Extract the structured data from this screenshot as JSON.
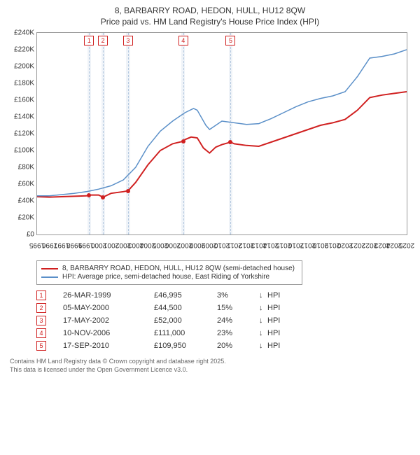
{
  "header": {
    "title": "8, BARBARRY ROAD, HEDON, HULL, HU12 8QW",
    "subtitle": "Price paid vs. HM Land Registry's House Price Index (HPI)"
  },
  "chart": {
    "type": "line",
    "x_years": [
      1995,
      1996,
      1997,
      1998,
      1999,
      2000,
      2001,
      2002,
      2003,
      2004,
      2005,
      2006,
      2007,
      2008,
      2009,
      2010,
      2011,
      2012,
      2013,
      2014,
      2015,
      2016,
      2017,
      2018,
      2019,
      2020,
      2021,
      2022,
      2023,
      2024,
      2025
    ],
    "ylim": [
      0,
      240000
    ],
    "ytick_step": 20000,
    "ytick_labels": [
      "£0",
      "£20K",
      "£40K",
      "£60K",
      "£80K",
      "£100K",
      "£120K",
      "£140K",
      "£160K",
      "£180K",
      "£200K",
      "£220K",
      "£240K"
    ],
    "series": [
      {
        "name": "property",
        "color": "#d02020",
        "width": 2,
        "points": [
          [
            1995,
            45000
          ],
          [
            1996,
            44500
          ],
          [
            1997,
            45000
          ],
          [
            1998,
            45500
          ],
          [
            1999,
            46000
          ],
          [
            1999.23,
            46995
          ],
          [
            2000,
            47000
          ],
          [
            2000.35,
            44500
          ],
          [
            2001,
            49000
          ],
          [
            2002,
            51000
          ],
          [
            2002.38,
            52000
          ],
          [
            2003,
            62000
          ],
          [
            2004,
            83000
          ],
          [
            2005,
            100000
          ],
          [
            2006,
            108000
          ],
          [
            2006.86,
            111000
          ],
          [
            2007,
            113000
          ],
          [
            2007.5,
            116000
          ],
          [
            2008,
            115000
          ],
          [
            2008.5,
            103000
          ],
          [
            2009,
            97000
          ],
          [
            2009.5,
            104000
          ],
          [
            2010,
            107000
          ],
          [
            2010.71,
            109950
          ],
          [
            2011,
            108000
          ],
          [
            2012,
            106000
          ],
          [
            2013,
            105000
          ],
          [
            2014,
            110000
          ],
          [
            2015,
            115000
          ],
          [
            2016,
            120000
          ],
          [
            2017,
            125000
          ],
          [
            2018,
            130000
          ],
          [
            2019,
            133000
          ],
          [
            2020,
            137000
          ],
          [
            2021,
            148000
          ],
          [
            2022,
            163000
          ],
          [
            2023,
            166000
          ],
          [
            2024,
            168000
          ],
          [
            2025,
            170000
          ]
        ]
      },
      {
        "name": "hpi",
        "color": "#5a8fc8",
        "width": 1.5,
        "points": [
          [
            1995,
            46000
          ],
          [
            1996,
            46000
          ],
          [
            1997,
            47500
          ],
          [
            1998,
            49000
          ],
          [
            1999,
            51000
          ],
          [
            2000,
            54000
          ],
          [
            2001,
            58000
          ],
          [
            2002,
            65000
          ],
          [
            2003,
            80000
          ],
          [
            2004,
            105000
          ],
          [
            2005,
            123000
          ],
          [
            2006,
            135000
          ],
          [
            2007,
            145000
          ],
          [
            2007.7,
            150000
          ],
          [
            2008,
            148000
          ],
          [
            2008.7,
            130000
          ],
          [
            2009,
            125000
          ],
          [
            2010,
            135000
          ],
          [
            2011,
            133000
          ],
          [
            2012,
            131000
          ],
          [
            2013,
            132000
          ],
          [
            2014,
            138000
          ],
          [
            2015,
            145000
          ],
          [
            2016,
            152000
          ],
          [
            2017,
            158000
          ],
          [
            2018,
            162000
          ],
          [
            2019,
            165000
          ],
          [
            2020,
            170000
          ],
          [
            2021,
            188000
          ],
          [
            2022,
            210000
          ],
          [
            2023,
            212000
          ],
          [
            2024,
            215000
          ],
          [
            2025,
            220000
          ]
        ]
      }
    ],
    "transactions": [
      {
        "n": "1",
        "year": 1999.23,
        "price": 46995
      },
      {
        "n": "2",
        "year": 2000.35,
        "price": 44500
      },
      {
        "n": "3",
        "year": 2002.38,
        "price": 52000
      },
      {
        "n": "4",
        "year": 2006.86,
        "price": 111000
      },
      {
        "n": "5",
        "year": 2010.71,
        "price": 109950
      }
    ],
    "band_color": "rgba(120,160,200,0.12)",
    "dash_color": "rgba(120,160,200,0.5)",
    "background": "#ffffff",
    "axis_fontsize": 10
  },
  "legend": {
    "items": [
      {
        "color": "#d02020",
        "label": "8, BARBARRY ROAD, HEDON, HULL, HU12 8QW (semi-detached house)"
      },
      {
        "color": "#5a8fc8",
        "label": "HPI: Average price, semi-detached house, East Riding of Yorkshire"
      }
    ]
  },
  "transactions_table": [
    {
      "n": "1",
      "date": "26-MAR-1999",
      "price": "£46,995",
      "pct": "3%",
      "dir": "↓",
      "vs": "HPI"
    },
    {
      "n": "2",
      "date": "05-MAY-2000",
      "price": "£44,500",
      "pct": "15%",
      "dir": "↓",
      "vs": "HPI"
    },
    {
      "n": "3",
      "date": "17-MAY-2002",
      "price": "£52,000",
      "pct": "24%",
      "dir": "↓",
      "vs": "HPI"
    },
    {
      "n": "4",
      "date": "10-NOV-2006",
      "price": "£111,000",
      "pct": "23%",
      "dir": "↓",
      "vs": "HPI"
    },
    {
      "n": "5",
      "date": "17-SEP-2010",
      "price": "£109,950",
      "pct": "20%",
      "dir": "↓",
      "vs": "HPI"
    }
  ],
  "footer": {
    "line1": "Contains HM Land Registry data © Crown copyright and database right 2025.",
    "line2": "This data is licensed under the Open Government Licence v3.0."
  }
}
